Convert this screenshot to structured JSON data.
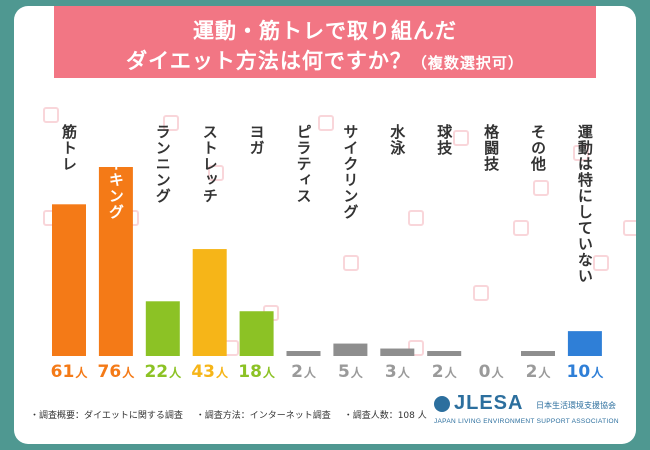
{
  "chart_data": {
    "type": "bar",
    "title_line1": "運動・筋トレで取り組んだ",
    "title_line2": "ダイエット方法は何ですか？",
    "title_note": "（複数選択可）",
    "unit": "人",
    "ylim": [
      0,
      76
    ],
    "categories": [
      "筋トレ",
      "ウォーキング",
      "ランニング",
      "ストレッチ",
      "ヨガ",
      "ピラティス",
      "サイクリング",
      "水泳",
      "球技",
      "格闘技",
      "その他",
      "運動は特にしていない"
    ],
    "values": [
      61,
      76,
      22,
      43,
      18,
      2,
      5,
      3,
      2,
      0,
      2,
      10
    ],
    "bar_colors": [
      "#f47a17",
      "#f47a17",
      "#8cc225",
      "#f6b518",
      "#8cc225",
      "#8e8e8e",
      "#8e8e8e",
      "#8e8e8e",
      "#8e8e8e",
      "#8e8e8e",
      "#8e8e8e",
      "#2f7fd7"
    ],
    "value_colors": [
      "#f47a17",
      "#f47a17",
      "#8cc225",
      "#f6b518",
      "#8cc225",
      "#9a9a9a",
      "#9a9a9a",
      "#9a9a9a",
      "#9a9a9a",
      "#9a9a9a",
      "#9a9a9a",
      "#2f7fd7"
    ]
  },
  "footer": {
    "survey_summary": "・調査概要：ダイエットに関する調査",
    "survey_method": "・調査方法：インターネット調査",
    "survey_count": "・調査人数：108 人"
  },
  "logo": {
    "brand": "JLESA",
    "jp_name": "日本生活環境支援協会",
    "en_name": "JAPAN LIVING ENVIRONMENT SUPPORT ASSOCIATION",
    "color": "#2c6f9e"
  }
}
